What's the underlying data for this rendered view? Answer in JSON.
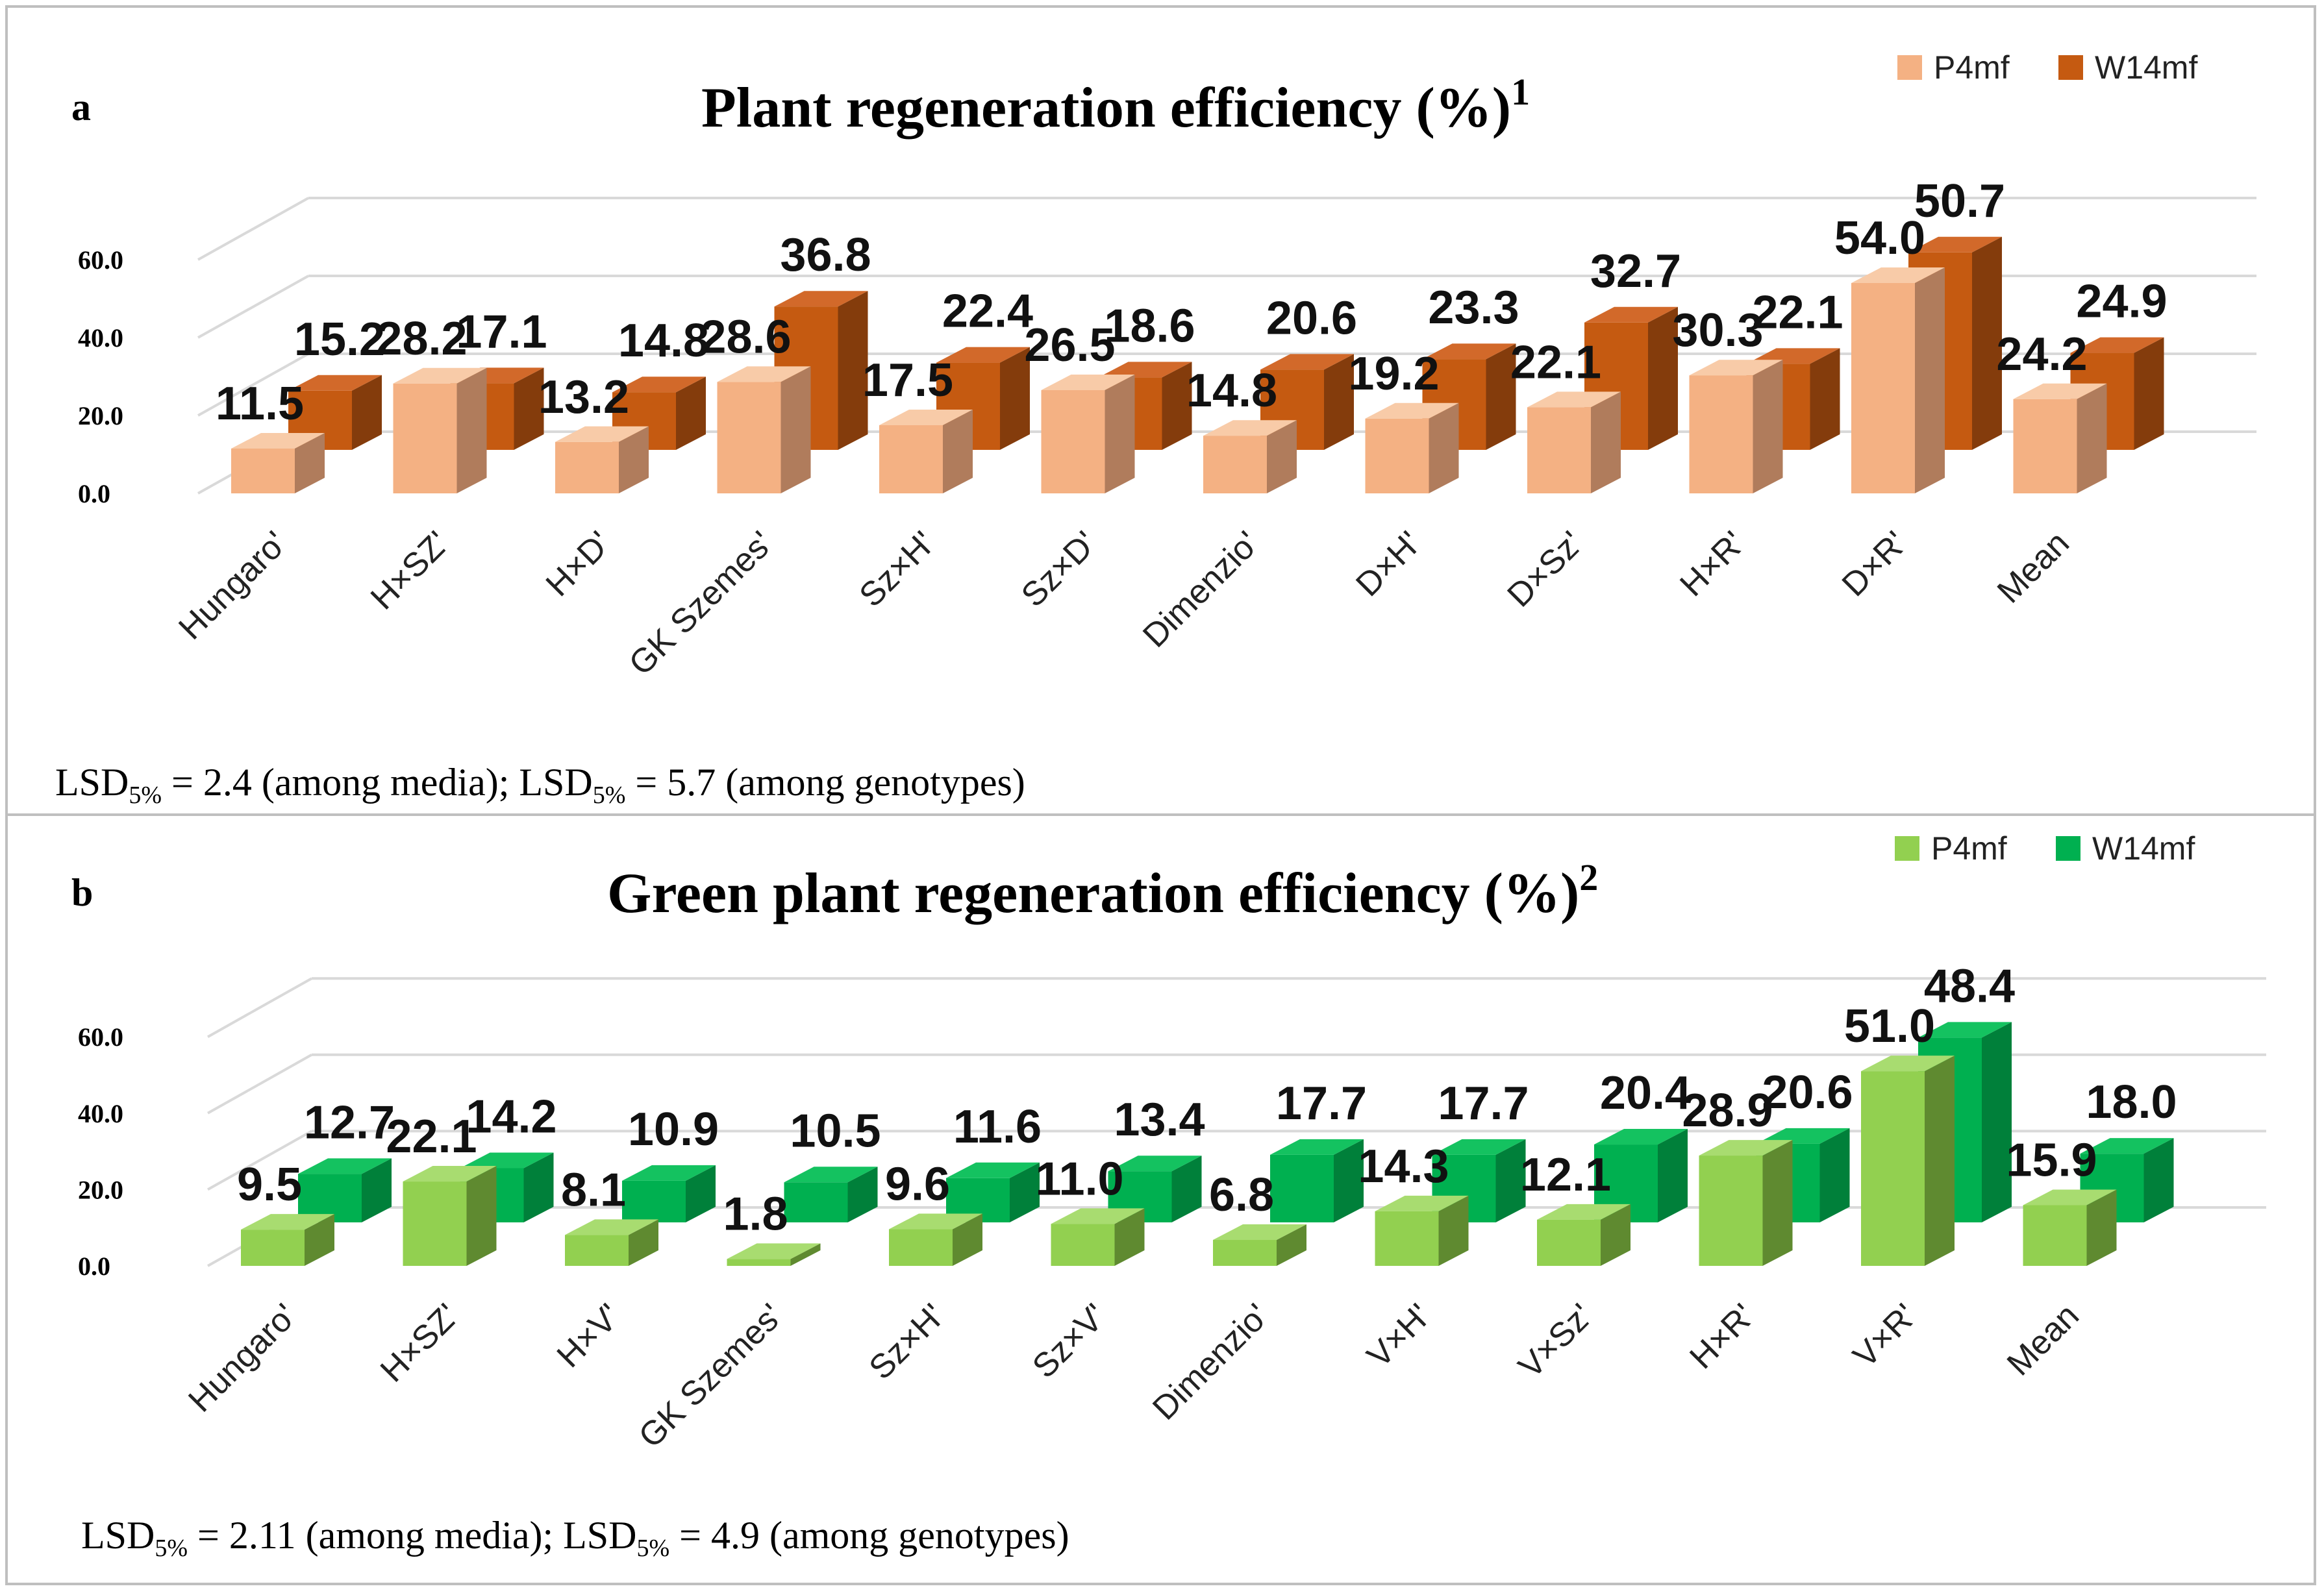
{
  "chart_data": [
    {
      "type": "bar",
      "panel": "a",
      "title": "Plant regeneration efficiency (%)",
      "title_sup": "1",
      "categories": [
        "Hungaro'",
        "H×SZ'",
        "H×D'",
        "GK Szemes'",
        "Sz×H'",
        "Sz×D'",
        "Dimenzio'",
        "D×H'",
        "D×Sz'",
        "H×R'",
        "D×R'",
        "Mean"
      ],
      "series": [
        {
          "name": "P4mf",
          "values": [
            11.5,
            28.2,
            13.2,
            28.6,
            17.5,
            26.5,
            14.8,
            19.2,
            22.1,
            30.3,
            54.0,
            24.2
          ],
          "labels": [
            "11.5",
            "28.2",
            "13.2",
            "28.6",
            "17.5",
            "26.5",
            "14.8",
            "19.2",
            "22.1",
            "30.3",
            "54.0",
            "24.2"
          ]
        },
        {
          "name": "W14mf",
          "values": [
            15.2,
            17.1,
            14.8,
            36.8,
            22.4,
            18.6,
            20.6,
            23.3,
            32.7,
            22.1,
            50.7,
            24.9
          ],
          "labels": [
            "15.2",
            "17.1",
            "14.8",
            "36.8",
            "22.4",
            "18.6",
            "20.6",
            "23.3",
            "32.7",
            "22.1",
            "50.7",
            "24.9"
          ]
        }
      ],
      "yticks": [
        "0.0",
        "20.0",
        "40.0",
        "60.0"
      ],
      "ylim": [
        0,
        60
      ],
      "legend_position": "top-right",
      "lsd": {
        "prefix": "LSD",
        "sub": "5%",
        "text1": " = 2.4 (among media); LSD",
        "text2": " = 5.7 (among genotypes)"
      }
    },
    {
      "type": "bar",
      "panel": "b",
      "title": "Green plant regeneration efficiency (%)",
      "title_sup": "2",
      "categories": [
        "Hungaro'",
        "H×SZ'",
        "H×V'",
        "GK Szemes'",
        "Sz×H'",
        "Sz×V'",
        "Dimenzio'",
        "V×H'",
        "V×Sz'",
        "H×R'",
        "V×R'",
        "Mean"
      ],
      "series": [
        {
          "name": "P4mf",
          "values": [
            9.5,
            22.1,
            8.1,
            1.8,
            9.6,
            11.0,
            6.8,
            14.3,
            12.1,
            28.9,
            51.0,
            15.9
          ],
          "labels": [
            "9.5",
            "22.1",
            "8.1",
            "1.8",
            "9.6",
            "11.0",
            "6.8",
            "14.3",
            "12.1",
            "28.9",
            "51.0",
            "15.9"
          ]
        },
        {
          "name": "W14mf",
          "values": [
            12.7,
            14.2,
            10.9,
            10.5,
            11.6,
            13.4,
            17.7,
            17.7,
            20.4,
            20.6,
            48.4,
            18.0
          ],
          "labels": [
            "12.7",
            "14.2",
            "10.9",
            "10.5",
            "11.6",
            "13.4",
            "17.7",
            "17.7",
            "20.4",
            "20.6",
            "48.4",
            "18.0"
          ]
        }
      ],
      "yticks": [
        "0.0",
        "20.0",
        "40.0",
        "60.0"
      ],
      "ylim": [
        0,
        60
      ],
      "legend_position": "top-right",
      "lsd": {
        "prefix": "LSD",
        "sub": "5%",
        "text1": " = 2.11 (among media); LSD",
        "text2": " = 4.9 (among genotypes)"
      }
    }
  ],
  "colors": {
    "a": {
      "P4mf": {
        "front": "#f4b183",
        "side": "#b07c5c",
        "top": "#f8cba8"
      },
      "W14mf": {
        "front": "#c55a11",
        "side": "#843c0c",
        "top": "#d2692a"
      }
    },
    "b": {
      "P4mf": {
        "front": "#92d050",
        "side": "#5f8a30",
        "top": "#a8dc70"
      },
      "W14mf": {
        "front": "#00b050",
        "side": "#00803a",
        "top": "#14c260"
      }
    },
    "grid": "#d9d9d9",
    "border": "#bfbfbf"
  }
}
